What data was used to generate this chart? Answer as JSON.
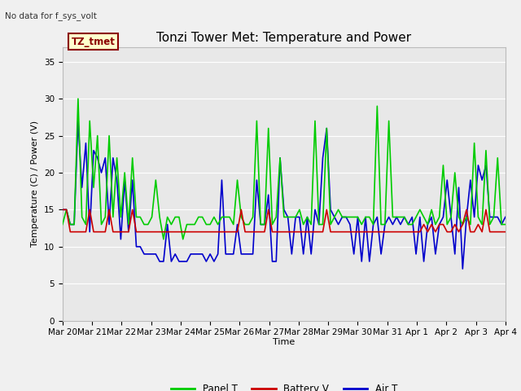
{
  "title": "Tonzi Tower Met: Temperature and Power",
  "ylabel": "Temperature (C) / Power (V)",
  "xlabel": "Time",
  "no_data_text": "No data for f_sys_volt",
  "legend_box_text": "TZ_tmet",
  "legend_box_facecolor": "#FFFFCC",
  "legend_box_edgecolor": "#8B0000",
  "ylim": [
    0,
    37
  ],
  "yticks": [
    0,
    5,
    10,
    15,
    20,
    25,
    30,
    35
  ],
  "bg_color": "#E8E8E8",
  "grid_color": "#FFFFFF",
  "line_green": "#00CC00",
  "line_red": "#CC0000",
  "line_blue": "#0000CC",
  "x_tick_labels": [
    "Mar 20",
    "Mar 21",
    "Mar 22",
    "Mar 23",
    "Mar 24",
    "Mar 25",
    "Mar 26",
    "Mar 27",
    "Mar 28",
    "Mar 29",
    "Mar 30",
    "Mar 31",
    "Apr 1",
    "Apr 2",
    "Apr 3",
    "Apr 4"
  ],
  "panel_t": [
    13,
    15,
    13,
    13,
    30,
    14,
    13,
    27,
    18,
    25,
    13,
    14,
    25,
    14,
    22,
    14,
    20,
    13,
    22,
    14,
    14,
    13,
    13,
    14,
    19,
    14,
    11,
    14,
    13,
    14,
    14,
    11,
    13,
    13,
    13,
    14,
    14,
    13,
    13,
    14,
    13,
    14,
    14,
    14,
    13,
    19,
    14,
    13,
    13,
    14,
    27,
    13,
    13,
    26,
    13,
    14,
    22,
    14,
    14,
    14,
    14,
    15,
    13,
    14,
    13,
    27,
    13,
    13,
    26,
    13,
    14,
    15,
    14,
    14,
    14,
    14,
    14,
    13,
    14,
    14,
    13,
    29,
    13,
    13,
    27,
    14,
    14,
    14,
    14,
    13,
    13,
    14,
    15,
    14,
    13,
    15,
    13,
    14,
    21,
    13,
    14,
    20,
    14,
    13,
    14,
    13,
    24,
    14,
    13,
    23,
    13,
    14,
    22,
    13,
    13
  ],
  "battery_v": [
    15,
    15,
    12,
    12,
    12,
    12,
    12,
    15,
    12,
    12,
    12,
    12,
    15,
    12,
    12,
    12,
    12,
    12,
    15,
    12,
    12,
    12,
    12,
    12,
    12,
    12,
    12,
    12,
    12,
    12,
    12,
    12,
    12,
    12,
    12,
    12,
    12,
    12,
    12,
    12,
    12,
    12,
    12,
    12,
    12,
    12,
    15,
    12,
    12,
    12,
    12,
    12,
    12,
    15,
    12,
    12,
    12,
    12,
    12,
    12,
    12,
    12,
    12,
    12,
    12,
    12,
    12,
    12,
    15,
    12,
    12,
    12,
    12,
    12,
    12,
    12,
    12,
    12,
    12,
    12,
    12,
    12,
    12,
    12,
    12,
    12,
    12,
    12,
    12,
    12,
    12,
    12,
    12,
    13,
    12,
    13,
    12,
    13,
    13,
    12,
    12,
    13,
    12,
    13,
    15,
    12,
    12,
    13,
    12,
    15,
    12,
    12,
    12,
    12,
    12
  ],
  "air_t": [
    15,
    15,
    13,
    13,
    27,
    18,
    24,
    12,
    23,
    22,
    20,
    22,
    13,
    22,
    19,
    11,
    19,
    12,
    19,
    10,
    10,
    9,
    9,
    9,
    9,
    8,
    8,
    13,
    8,
    9,
    8,
    8,
    8,
    9,
    9,
    9,
    9,
    8,
    9,
    8,
    9,
    19,
    9,
    9,
    9,
    13,
    9,
    9,
    9,
    9,
    19,
    13,
    13,
    17,
    8,
    8,
    22,
    15,
    14,
    9,
    14,
    14,
    9,
    14,
    9,
    15,
    13,
    22,
    26,
    15,
    14,
    13,
    14,
    14,
    13,
    9,
    14,
    8,
    14,
    8,
    13,
    14,
    9,
    13,
    14,
    13,
    14,
    13,
    14,
    13,
    14,
    9,
    14,
    8,
    13,
    14,
    9,
    13,
    14,
    19,
    14,
    9,
    18,
    7,
    14,
    19,
    14,
    21,
    19,
    21,
    14,
    14,
    14,
    13,
    14
  ]
}
